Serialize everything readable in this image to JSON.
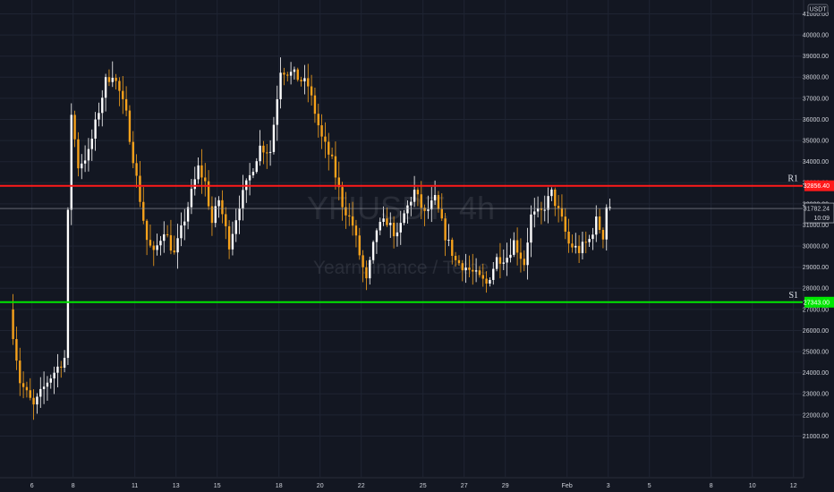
{
  "chart_data": {
    "type": "candlestick",
    "symbol": "YFIUSDT",
    "timeframe": "4h",
    "watermark_name": "Yearn.finance / Tethe",
    "currency": "USDT",
    "x_ticks": [
      "6",
      "8",
      "11",
      "13",
      "15",
      "18",
      "20",
      "22",
      "25",
      "27",
      "29",
      "Feb",
      "3",
      "5",
      "8",
      "10",
      "12"
    ],
    "y_ticks": [
      21000,
      22000,
      23000,
      24000,
      25000,
      26000,
      27000,
      28000,
      29000,
      30000,
      31000,
      32000,
      33000,
      34000,
      35000,
      36000,
      37000,
      38000,
      39000,
      40000,
      41000
    ],
    "y_tick_labels": [
      "21000.00",
      "22000.00",
      "23000.00",
      "24000.00",
      "25000.00",
      "26000.00",
      "27000.00",
      "28000.00",
      "29000.00",
      "30000.00",
      "31000.00",
      "32000.00",
      "33000.00",
      "34000.00",
      "35000.00",
      "36000.00",
      "37000.00",
      "38000.00",
      "39000.00",
      "40000.00",
      "41000.00"
    ],
    "ylim": [
      20200,
      42200
    ],
    "levels": [
      {
        "name": "R1",
        "value": 32856.4,
        "label": "32856.40",
        "color": "#ff1a1a"
      },
      {
        "name": "S1",
        "value": 27343.0,
        "label": "27343.00",
        "color": "#00e600"
      }
    ],
    "current_price": {
      "value": 31782.24,
      "label": "31782.24",
      "countdown": "10:09"
    },
    "colors": {
      "up": "#ffffff",
      "down": "#f7a21b",
      "background": "#131722",
      "grid": "#1f2433"
    },
    "waypoints": [
      {
        "t": "Jan 5 00:00",
        "p": 27000
      },
      {
        "t": "Jan 5 12:00",
        "p": 23600
      },
      {
        "t": "Jan 6 04:00",
        "p": 22400
      },
      {
        "t": "Jan 6 20:00",
        "p": 23600
      },
      {
        "t": "Jan 7 16:00",
        "p": 24700
      },
      {
        "t": "Jan 7 20:00",
        "p": 31500
      },
      {
        "t": "Jan 8 00:00",
        "p": 36300
      },
      {
        "t": "Jan 8 08:00",
        "p": 33800
      },
      {
        "t": "Jan 8 20:00",
        "p": 34400
      },
      {
        "t": "Jan 9 16:00",
        "p": 37800
      },
      {
        "t": "Jan 10 00:00",
        "p": 38200
      },
      {
        "t": "Jan 10 08:00",
        "p": 37300
      },
      {
        "t": "Jan 10 16:00",
        "p": 36200
      },
      {
        "t": "Jan 11 04:00",
        "p": 33200
      },
      {
        "t": "Jan 11 16:00",
        "p": 30300
      },
      {
        "t": "Jan 12 00:00",
        "p": 29600
      },
      {
        "t": "Jan 12 12:00",
        "p": 30800
      },
      {
        "t": "Jan 13 00:00",
        "p": 29600
      },
      {
        "t": "Jan 13 12:00",
        "p": 31300
      },
      {
        "t": "Jan 14 04:00",
        "p": 33700
      },
      {
        "t": "Jan 14 12:00",
        "p": 33000
      },
      {
        "t": "Jan 14 20:00",
        "p": 31100
      },
      {
        "t": "Jan 15 04:00",
        "p": 32200
      },
      {
        "t": "Jan 15 16:00",
        "p": 30100
      },
      {
        "t": "Jan 16 04:00",
        "p": 32000
      },
      {
        "t": "Jan 16 16:00",
        "p": 33300
      },
      {
        "t": "Jan 17 04:00",
        "p": 34700
      },
      {
        "t": "Jan 17 16:00",
        "p": 34500
      },
      {
        "t": "Jan 18 04:00",
        "p": 38400
      },
      {
        "t": "Jan 18 20:00",
        "p": 38100
      },
      {
        "t": "Jan 19 12:00",
        "p": 37600
      },
      {
        "t": "Jan 20 04:00",
        "p": 35100
      },
      {
        "t": "Jan 20 16:00",
        "p": 34000
      },
      {
        "t": "Jan 21 04:00",
        "p": 32000
      },
      {
        "t": "Jan 21 16:00",
        "p": 31000
      },
      {
        "t": "Jan 22 00:00",
        "p": 29600
      },
      {
        "t": "Jan 22 08:00",
        "p": 28300
      },
      {
        "t": "Jan 22 20:00",
        "p": 30800
      },
      {
        "t": "Jan 23 08:00",
        "p": 31200
      },
      {
        "t": "Jan 23 20:00",
        "p": 30400
      },
      {
        "t": "Jan 24 04:00",
        "p": 31500
      },
      {
        "t": "Jan 24 16:00",
        "p": 32600
      },
      {
        "t": "Jan 25 04:00",
        "p": 31500
      },
      {
        "t": "Jan 25 16:00",
        "p": 32200
      },
      {
        "t": "Jan 26 04:00",
        "p": 30500
      },
      {
        "t": "Jan 26 16:00",
        "p": 29300
      },
      {
        "t": "Jan 27 04:00",
        "p": 29000
      },
      {
        "t": "Jan 27 16:00",
        "p": 28600
      },
      {
        "t": "Jan 28 04:00",
        "p": 28200
      },
      {
        "t": "Jan 28 16:00",
        "p": 29400
      },
      {
        "t": "Jan 29 04:00",
        "p": 29500
      },
      {
        "t": "Jan 29 12:00",
        "p": 30200
      },
      {
        "t": "Jan 30 00:00",
        "p": 29200
      },
      {
        "t": "Jan 30 08:00",
        "p": 31400
      },
      {
        "t": "Jan 30 20:00",
        "p": 31600
      },
      {
        "t": "Jan 31 08:00",
        "p": 32500
      },
      {
        "t": "Jan 31 20:00",
        "p": 31200
      },
      {
        "t": "Feb 1 04:00",
        "p": 30100
      },
      {
        "t": "Feb 1 16:00",
        "p": 29800
      },
      {
        "t": "Feb 2 04:00",
        "p": 30300
      },
      {
        "t": "Feb 2 12:00",
        "p": 31200
      },
      {
        "t": "Feb 2 20:00",
        "p": 30500
      },
      {
        "t": "Feb 3 00:00",
        "p": 31900
      }
    ]
  }
}
